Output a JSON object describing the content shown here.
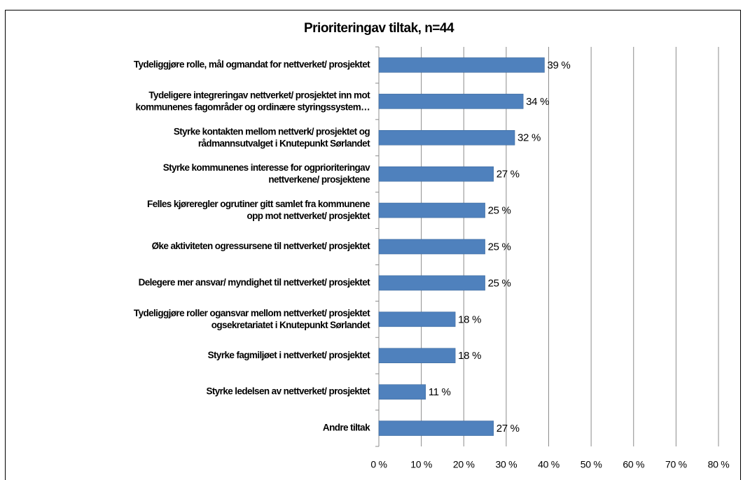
{
  "chart_data": {
    "type": "bar",
    "orientation": "horizontal",
    "title": "Prioriteringav tiltak, n=44",
    "categories": [
      "Tydeliggjøre rolle, mål ogmandat for nettverket/ prosjektet",
      "Tydeligere integreringav nettverket/ prosjektet inn mot\nkommunenes fagområder og ordinære styringssystem…",
      "Styrke kontakten mellom nettverk/ prosjektet og\nrådmannsutvalget i Knutepunkt Sørlandet",
      "Styrke kommunenes interesse for ogprioriteringav\nnettverkene/ prosjektene",
      "Felles kjøreregler ogrutiner gitt samlet fra kommunene\nopp mot nettverket/ prosjektet",
      "Øke aktiviteten ogressursene til nettverket/ prosjektet",
      "Delegere mer ansvar/ myndighet til nettverket/ prosjektet",
      "Tydeliggjøre roller ogansvar mellom nettverket/ prosjektet\nogsekretariatet i Knutepunkt Sørlandet",
      "Styrke fagmiljøet i nettverket/ prosjektet",
      "Styrke ledelsen av nettverket/ prosjektet",
      "Andre tiltak"
    ],
    "values": [
      39,
      34,
      32,
      27,
      25,
      25,
      25,
      18,
      18,
      11,
      27
    ],
    "value_labels": [
      "39 %",
      "34 %",
      "32 %",
      "27 %",
      "25 %",
      "25 %",
      "25 %",
      "18 %",
      "18 %",
      "11 %",
      "27 %"
    ],
    "color": "#4f81bd",
    "xlim": [
      0,
      80
    ],
    "xticks": [
      {
        "value": 0,
        "label": "0 %"
      },
      {
        "value": 10,
        "label": "10 %"
      },
      {
        "value": 20,
        "label": "20 %"
      },
      {
        "value": 30,
        "label": "30 %"
      },
      {
        "value": 40,
        "label": "40 %"
      },
      {
        "value": 50,
        "label": "50 %"
      },
      {
        "value": 60,
        "label": "60 %"
      },
      {
        "value": 70,
        "label": "70 %"
      },
      {
        "value": 80,
        "label": "80 %"
      }
    ],
    "grid": true
  }
}
